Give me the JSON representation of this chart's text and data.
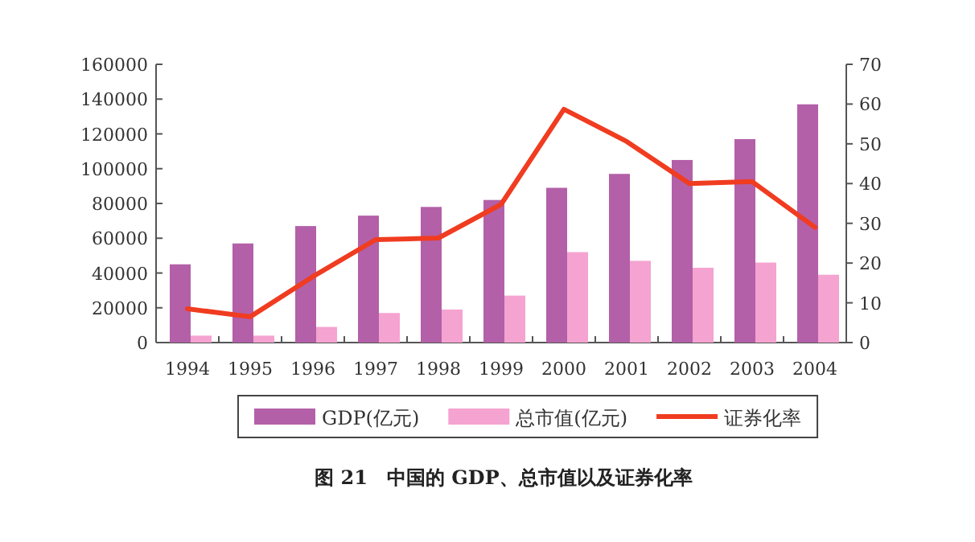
{
  "chart_data": {
    "type": "bar",
    "title": "图 21　中国的 GDP、总市值以及证券化率",
    "categories": [
      "1994",
      "1995",
      "1996",
      "1997",
      "1998",
      "1999",
      "2000",
      "2001",
      "2002",
      "2003",
      "2004"
    ],
    "series": [
      {
        "name": "GDP(亿元)",
        "color": "#b360a8",
        "values": [
          45000,
          57000,
          67000,
          73000,
          78000,
          82000,
          89000,
          97000,
          105000,
          117000,
          137000
        ]
      },
      {
        "name": "总市值(亿元)",
        "color": "#f5a3d0",
        "values": [
          4000,
          4000,
          9000,
          17000,
          19000,
          27000,
          52000,
          47000,
          43000,
          46000,
          39000
        ]
      },
      {
        "name": "证券化率",
        "type": "line",
        "axis": "y2",
        "color": "#f03c20",
        "values": [
          8.5,
          6.5,
          16.6,
          25.9,
          26.3,
          34.8,
          58.7,
          50.6,
          40,
          40.5,
          29
        ]
      }
    ],
    "ylim": [
      0,
      160000
    ],
    "yticks": [
      0,
      20000,
      40000,
      60000,
      80000,
      100000,
      120000,
      140000,
      160000
    ],
    "y2lim": [
      0,
      70
    ],
    "y2ticks": [
      0,
      10,
      20,
      30,
      40,
      50,
      60,
      70
    ],
    "grid": false,
    "legend": "bottom"
  }
}
